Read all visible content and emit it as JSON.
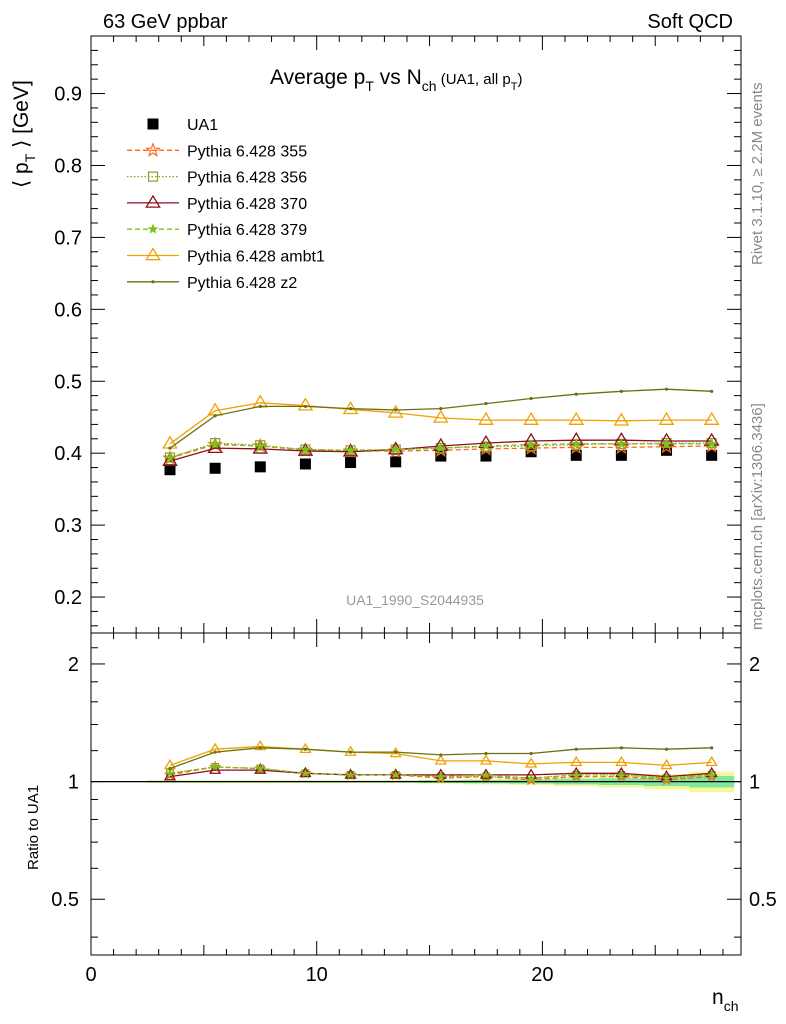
{
  "header": {
    "left": "63 GeV ppbar",
    "right": "Soft QCD"
  },
  "side_labels": {
    "rivet": "Rivet 3.1.10, ≥ 2.2M events",
    "mcplots": "mcplots.cern.ch [arXiv:1306.3436]"
  },
  "chart_data": {
    "type": "scatter",
    "title_main": "Average p",
    "title_sub1": "T",
    "title_vs": " vs N",
    "title_sub2": "ch",
    "title_paren_open": " (UA1, all p",
    "title_sub3": "T",
    "title_paren_close": ")",
    "analysis_label": "UA1_1990_S2044935",
    "ylabel_main": "⟨ p",
    "ylabel_sub": "T",
    "ylabel_tail": " ⟩ [GeV]",
    "xlabel_main": "n",
    "xlabel_sub": "ch",
    "ratio_ylabel": "Ratio to UA1",
    "xlim": [
      0,
      28.8
    ],
    "ylim": [
      0.15,
      0.98
    ],
    "ratio_ylim": [
      0.36,
      2.4
    ],
    "x_ticks": [
      0,
      10,
      20
    ],
    "y_ticks": [
      0.2,
      0.3,
      0.4,
      0.5,
      0.6,
      0.7,
      0.8,
      0.9
    ],
    "ratio_y_ticks": [
      0.5,
      1,
      2
    ],
    "x": [
      3.5,
      5.5,
      7.5,
      9.5,
      11.5,
      13.5,
      15.5,
      17.5,
      19.5,
      21.5,
      23.5,
      25.5,
      27.5
    ],
    "legend_position": "top-left",
    "series": [
      {
        "name": "UA1",
        "style": "data",
        "color": "#000000",
        "values": [
          0.377,
          0.379,
          0.381,
          0.385,
          0.387,
          0.388,
          0.396,
          0.396,
          0.402,
          0.397,
          0.397,
          0.404,
          0.397
        ]
      },
      {
        "name": "Pythia 6.428 355",
        "style": "star-dashed",
        "color": "#ff6a1a",
        "values": [
          0.393,
          0.412,
          0.41,
          0.404,
          0.403,
          0.403,
          0.404,
          0.406,
          0.407,
          0.408,
          0.408,
          0.409,
          0.41
        ]
      },
      {
        "name": "Pythia 6.428 356",
        "style": "square-dotted",
        "color": "#8aa21e",
        "values": [
          0.394,
          0.414,
          0.411,
          0.405,
          0.404,
          0.405,
          0.407,
          0.409,
          0.41,
          0.412,
          0.413,
          0.414,
          0.414
        ]
      },
      {
        "name": "Pythia 6.428 370",
        "style": "triangle-solid",
        "color": "#8b0f1e",
        "values": [
          0.389,
          0.407,
          0.406,
          0.403,
          0.402,
          0.405,
          0.41,
          0.414,
          0.417,
          0.418,
          0.418,
          0.417,
          0.417
        ]
      },
      {
        "name": "Pythia 6.428 379",
        "style": "star-dashed-small",
        "color": "#7cc21e",
        "values": [
          0.394,
          0.413,
          0.41,
          0.405,
          0.404,
          0.405,
          0.407,
          0.41,
          0.412,
          0.413,
          0.413,
          0.413,
          0.413
        ]
      },
      {
        "name": "Pythia 6.428 ambt1",
        "style": "triangle-solid",
        "color": "#f0a000",
        "values": [
          0.413,
          0.459,
          0.47,
          0.466,
          0.461,
          0.456,
          0.449,
          0.446,
          0.446,
          0.446,
          0.445,
          0.446,
          0.446
        ]
      },
      {
        "name": "Pythia 6.428 z2",
        "style": "dot-solid",
        "color": "#6b7010",
        "values": [
          0.407,
          0.452,
          0.465,
          0.465,
          0.462,
          0.46,
          0.462,
          0.469,
          0.476,
          0.482,
          0.486,
          0.489,
          0.486
        ]
      }
    ],
    "ratio_series": [
      {
        "name": "Pythia 6.428 355",
        "values": [
          1.04,
          1.09,
          1.08,
          1.05,
          1.04,
          1.04,
          1.02,
          1.03,
          1.01,
          1.03,
          1.03,
          1.01,
          1.03
        ]
      },
      {
        "name": "Pythia 6.428 356",
        "values": [
          1.05,
          1.09,
          1.08,
          1.05,
          1.04,
          1.04,
          1.03,
          1.03,
          1.02,
          1.04,
          1.04,
          1.02,
          1.04
        ]
      },
      {
        "name": "Pythia 6.428 370",
        "values": [
          1.03,
          1.07,
          1.07,
          1.05,
          1.04,
          1.04,
          1.04,
          1.04,
          1.04,
          1.05,
          1.05,
          1.03,
          1.05
        ]
      },
      {
        "name": "Pythia 6.428 379",
        "values": [
          1.05,
          1.09,
          1.08,
          1.05,
          1.04,
          1.04,
          1.03,
          1.04,
          1.02,
          1.04,
          1.04,
          1.02,
          1.04
        ]
      },
      {
        "name": "Pythia 6.428 ambt1",
        "values": [
          1.1,
          1.21,
          1.23,
          1.21,
          1.19,
          1.18,
          1.13,
          1.13,
          1.11,
          1.12,
          1.12,
          1.1,
          1.12
        ]
      },
      {
        "name": "Pythia 6.428 z2",
        "values": [
          1.08,
          1.19,
          1.22,
          1.21,
          1.19,
          1.19,
          1.17,
          1.18,
          1.18,
          1.21,
          1.22,
          1.21,
          1.22
        ]
      }
    ],
    "ratio_bands": [
      {
        "x0": 2.5,
        "x1": 14.5,
        "inner": 0.005,
        "outer": 0.008
      },
      {
        "x0": 14.5,
        "x1": 16.5,
        "inner": 0.008,
        "outer": 0.012
      },
      {
        "x0": 16.5,
        "x1": 18.5,
        "inner": 0.01,
        "outer": 0.016
      },
      {
        "x0": 18.5,
        "x1": 20.5,
        "inner": 0.012,
        "outer": 0.02
      },
      {
        "x0": 20.5,
        "x1": 22.5,
        "inner": 0.016,
        "outer": 0.026
      },
      {
        "x0": 22.5,
        "x1": 24.5,
        "inner": 0.02,
        "outer": 0.034
      },
      {
        "x0": 24.5,
        "x1": 26.5,
        "inner": 0.026,
        "outer": 0.045
      },
      {
        "x0": 26.5,
        "x1": 28.5,
        "inner": 0.034,
        "outer": 0.06
      }
    ],
    "colors": {
      "band_inner": "#7ee8a0",
      "band_outer": "#f7f79a",
      "side_text": "#888888",
      "analysis_text": "#999999"
    }
  }
}
